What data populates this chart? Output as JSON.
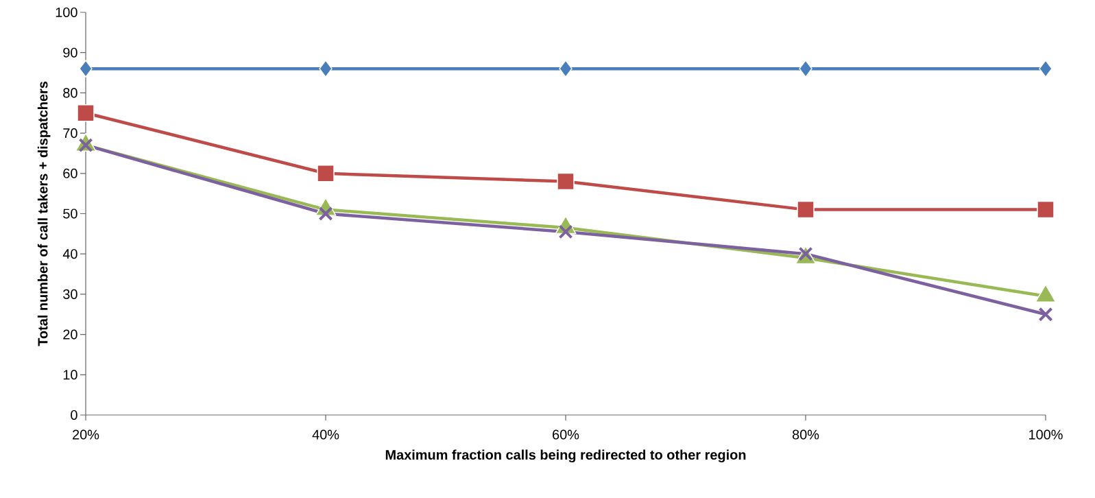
{
  "chart_data": {
    "type": "line",
    "xlabel": "Maximum fraction calls being redirected to other region",
    "ylabel": "Total number of call  takers + dispatchers",
    "categories": [
      "20%",
      "40%",
      "60%",
      "80%",
      "100%"
    ],
    "ylim": [
      0,
      100
    ],
    "yticks": [
      0,
      10,
      20,
      30,
      40,
      50,
      60,
      70,
      80,
      90,
      100
    ],
    "line_style": "solid",
    "series": [
      {
        "color": "#4a7ebb",
        "marker": "diamond",
        "values": [
          86,
          86,
          86,
          86,
          86
        ]
      },
      {
        "color": "#be4b48",
        "marker": "square",
        "values": [
          75,
          60,
          58,
          51,
          51
        ]
      },
      {
        "color": "#98b954",
        "marker": "triangle",
        "values": [
          67,
          51,
          46.5,
          39,
          29.5
        ]
      },
      {
        "color": "#7d60a0",
        "marker": "cross",
        "values": [
          67,
          50,
          45.5,
          40,
          25
        ]
      }
    ]
  }
}
